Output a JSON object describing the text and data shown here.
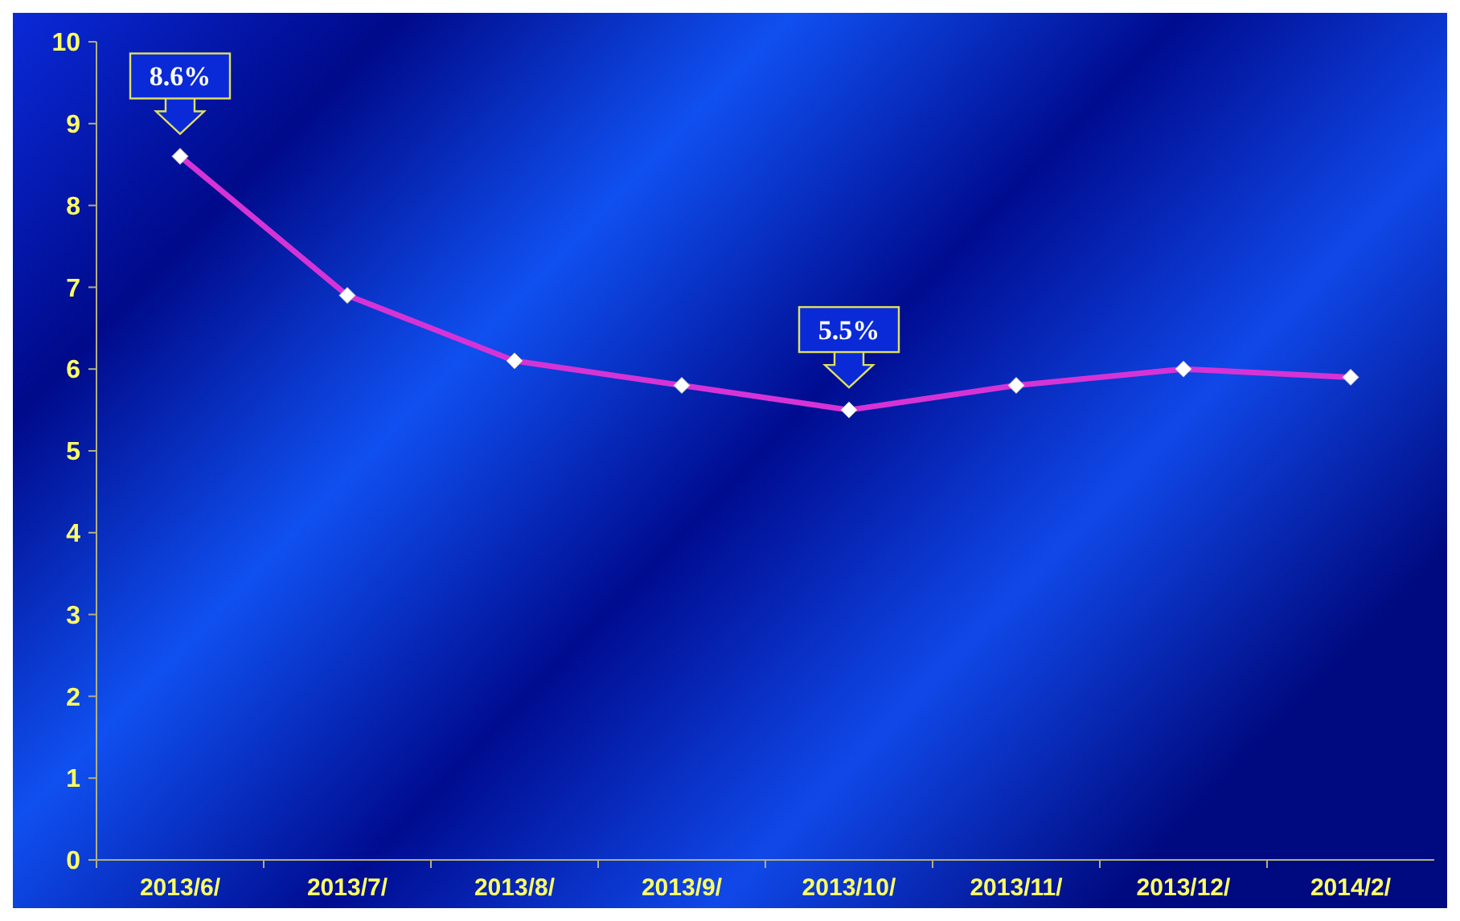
{
  "chart_data": {
    "type": "line",
    "categories": [
      "2013/6/",
      "2013/7/",
      "2013/8/",
      "2013/9/",
      "2013/10/",
      "2013/11/",
      "2013/12/",
      "2014/2/"
    ],
    "series": [
      {
        "color": "#d633d6",
        "values": [
          8.6,
          6.9,
          6.1,
          5.8,
          5.5,
          5.8,
          6.0,
          5.9
        ]
      }
    ],
    "ylim": [
      0,
      10
    ],
    "yticks": [
      0,
      1,
      2,
      3,
      4,
      5,
      6,
      7,
      8,
      9,
      10
    ],
    "grid": false,
    "marker": "diamond",
    "line_style": "solid",
    "annotations": [
      {
        "text": "8.6%",
        "x": "2013/6/",
        "y": 8.6
      },
      {
        "text": "5.5%",
        "x": "2013/10/",
        "y": 5.5
      }
    ]
  }
}
